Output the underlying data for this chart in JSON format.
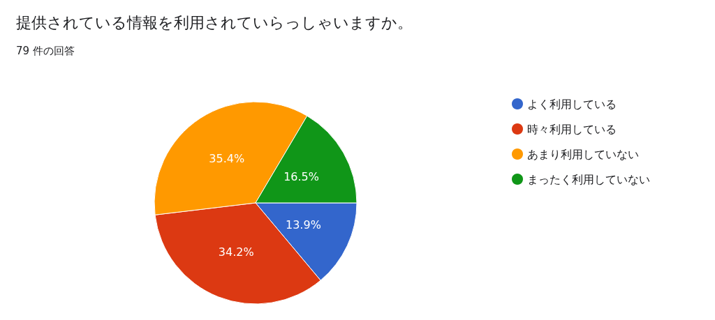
{
  "chart_data": {
    "type": "pie",
    "title": "提供されている情報を利用されていらっしゃいますか。",
    "subtitle": "79 件の回答",
    "categories": [
      "よく利用している",
      "時々利用している",
      "あまり利用していない",
      "まったく利用していない"
    ],
    "values": [
      13.9,
      34.2,
      35.4,
      16.5
    ],
    "value_labels": [
      "13.9%",
      "34.2%",
      "35.4%",
      "16.5%"
    ],
    "colors": [
      "#3366cc",
      "#dc3912",
      "#ff9900",
      "#109618"
    ],
    "legend": "right"
  }
}
